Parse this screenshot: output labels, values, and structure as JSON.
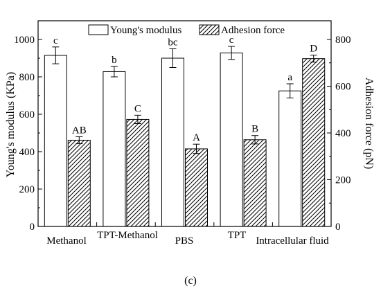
{
  "chart_data": {
    "type": "bar",
    "categories": [
      "Methanol",
      "TPT-Methanol",
      "PBS",
      "TPT",
      "Intracellular fluid"
    ],
    "series": [
      {
        "name": "Young's modulus",
        "axis": "left",
        "values": [
          915,
          828,
          900,
          928,
          725
        ],
        "errors": [
          45,
          28,
          50,
          35,
          38
        ],
        "labels": [
          "c",
          "b",
          "bc",
          "c",
          "a"
        ],
        "fill": "#ffffff",
        "pattern": "none"
      },
      {
        "name": "Adhesion force",
        "axis": "right",
        "values": [
          369,
          458,
          332,
          371,
          718
        ],
        "errors": [
          15,
          18,
          20,
          18,
          15
        ],
        "labels": [
          "AB",
          "C",
          "A",
          "B",
          "D"
        ],
        "fill": "#ffffff",
        "pattern": "diagonal-hatch"
      }
    ],
    "ylabel": "Young's modulus (KPa)",
    "y2label": "Adhesion force (pN)",
    "ylim": [
      0,
      1100
    ],
    "y2lim": [
      0,
      880
    ],
    "yticks": [
      0,
      200,
      400,
      600,
      800,
      1000
    ],
    "y2ticks": [
      0,
      200,
      400,
      600,
      800
    ],
    "legend_position": "top",
    "grid": false,
    "panel_label": "(c)"
  }
}
